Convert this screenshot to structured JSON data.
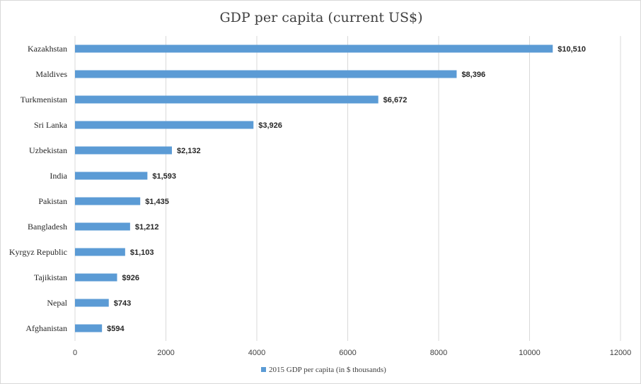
{
  "chart_data": {
    "type": "bar",
    "orientation": "horizontal",
    "title": "GDP per capita (current US$)",
    "categories": [
      "Kazakhstan",
      "Maldives",
      "Turkmenistan",
      "Sri Lanka",
      "Uzbekistan",
      "India",
      "Pakistan",
      "Bangladesh",
      "Kyrgyz Republic",
      "Tajikistan",
      "Nepal",
      "Afghanistan"
    ],
    "series": [
      {
        "name": "2015 GDP per capita (in $ thousands)",
        "values": [
          10510,
          8396,
          6672,
          3926,
          2132,
          1593,
          1435,
          1212,
          1103,
          926,
          743,
          594
        ],
        "labels": [
          "$10,510",
          "$8,396",
          "$6,672",
          "$3,926",
          "$2,132",
          "$1,593",
          "$1,435",
          "$1,212",
          "$1,103",
          "$926",
          "$743",
          "$594"
        ],
        "color": "#5b9bd5"
      }
    ],
    "xlim": [
      0,
      12000
    ],
    "xticks": [
      "0",
      "2000",
      "4000",
      "6000",
      "8000",
      "10000",
      "12000"
    ],
    "grid": true,
    "legend": "bottom"
  }
}
